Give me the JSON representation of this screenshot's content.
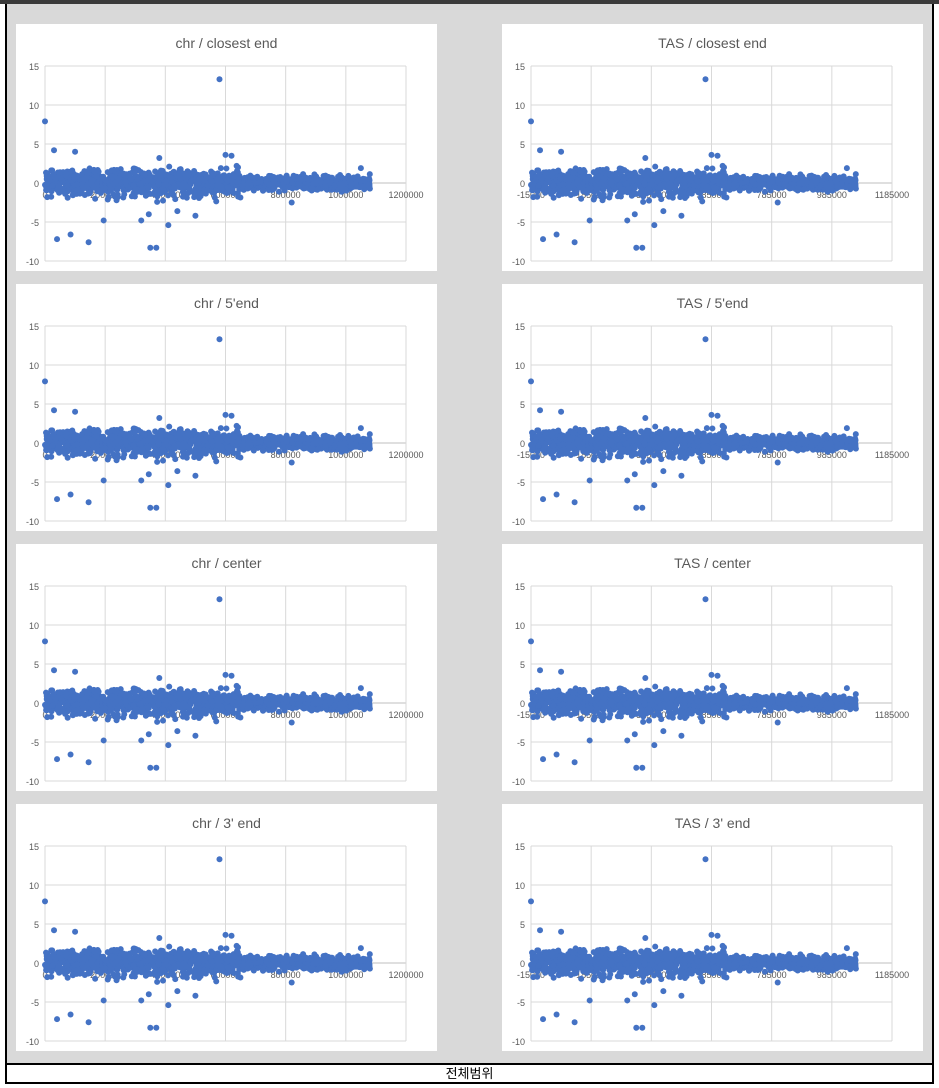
{
  "footer": {
    "label": "전체범위"
  },
  "colors": {
    "series": "#4472c4",
    "grid": "#d9d9d9",
    "axis": "#bfbfbf",
    "text": "#595959"
  },
  "chart_data": [
    {
      "id": "chr-closest",
      "type": "scatter",
      "title": "chr / closest end",
      "ylim": [
        -10,
        15
      ],
      "yticks": [
        -10,
        -5,
        0,
        5,
        10,
        15
      ],
      "xlim": [
        0,
        1200000
      ],
      "xticks": [
        0,
        200000,
        400000,
        600000,
        800000,
        1000000,
        1200000
      ],
      "xtick_labels": [
        "0",
        "200000",
        "400000",
        "600000",
        "800000",
        "1000000",
        "1200000"
      ]
    },
    {
      "id": "tas-closest",
      "type": "scatter",
      "title": "TAS / closest end",
      "ylim": [
        -10,
        15
      ],
      "yticks": [
        -10,
        -5,
        0,
        5,
        10,
        15
      ],
      "xlim": [
        -15000,
        1185000
      ],
      "xticks": [
        -15000,
        185000,
        385000,
        585000,
        785000,
        985000,
        1185000
      ],
      "xtick_labels": [
        "-15000",
        "185000",
        "385000",
        "585000",
        "785000",
        "985000",
        "1185000"
      ]
    },
    {
      "id": "chr-5end",
      "type": "scatter",
      "title": "chr / 5'end",
      "ylim": [
        -10,
        15
      ],
      "yticks": [
        -10,
        -5,
        0,
        5,
        10,
        15
      ],
      "xlim": [
        0,
        1200000
      ],
      "xticks": [
        0,
        200000,
        400000,
        600000,
        800000,
        1000000,
        1200000
      ],
      "xtick_labels": [
        "0",
        "200000",
        "400000",
        "600000",
        "800000",
        "1000000",
        "1200000"
      ]
    },
    {
      "id": "tas-5end",
      "type": "scatter",
      "title": "TAS / 5'end",
      "ylim": [
        -10,
        15
      ],
      "yticks": [
        -10,
        -5,
        0,
        5,
        10,
        15
      ],
      "xlim": [
        -15000,
        1185000
      ],
      "xticks": [
        -15000,
        185000,
        385000,
        585000,
        785000,
        985000,
        1185000
      ],
      "xtick_labels": [
        "-15000",
        "185000",
        "385000",
        "585000",
        "785000",
        "985000",
        "1185000"
      ]
    },
    {
      "id": "chr-center",
      "type": "scatter",
      "title": "chr / center",
      "ylim": [
        -10,
        15
      ],
      "yticks": [
        -10,
        -5,
        0,
        5,
        10,
        15
      ],
      "xlim": [
        0,
        1200000
      ],
      "xticks": [
        0,
        200000,
        400000,
        600000,
        800000,
        1000000,
        1200000
      ],
      "xtick_labels": [
        "0",
        "200000",
        "400000",
        "600000",
        "800000",
        "1000000",
        "1200000"
      ]
    },
    {
      "id": "tas-center",
      "type": "scatter",
      "title": "TAS / center",
      "ylim": [
        -10,
        15
      ],
      "yticks": [
        -10,
        -5,
        0,
        5,
        10,
        15
      ],
      "xlim": [
        -15000,
        1185000
      ],
      "xticks": [
        -15000,
        185000,
        385000,
        585000,
        785000,
        985000,
        1185000
      ],
      "xtick_labels": [
        "-15000",
        "185000",
        "385000",
        "585000",
        "785000",
        "985000",
        "1185000"
      ]
    },
    {
      "id": "chr-3end",
      "type": "scatter",
      "title": "chr / 3' end",
      "ylim": [
        -10,
        15
      ],
      "yticks": [
        -10,
        -5,
        0,
        5,
        10,
        15
      ],
      "xlim": [
        0,
        1200000
      ],
      "xticks": [
        0,
        200000,
        400000,
        600000,
        800000,
        1000000,
        1200000
      ],
      "xtick_labels": [
        "0",
        "200000",
        "400000",
        "600000",
        "800000",
        "1000000",
        "1200000"
      ]
    },
    {
      "id": "tas-3end",
      "type": "scatter",
      "title": "TAS / 3' end",
      "ylim": [
        -10,
        15
      ],
      "yticks": [
        -10,
        -5,
        0,
        5,
        10,
        15
      ],
      "xlim": [
        -15000,
        1185000
      ],
      "xticks": [
        -15000,
        185000,
        385000,
        585000,
        785000,
        985000,
        1185000
      ],
      "xtick_labels": [
        "-15000",
        "185000",
        "385000",
        "585000",
        "785000",
        "985000",
        "1185000"
      ]
    }
  ],
  "outliers": [
    [
      0,
      7.9
    ],
    [
      40000,
      -7.2
    ],
    [
      30000,
      4.2
    ],
    [
      85000,
      -6.6
    ],
    [
      100000,
      4.0
    ],
    [
      145000,
      -7.6
    ],
    [
      195000,
      -4.8
    ],
    [
      320000,
      -4.8
    ],
    [
      345000,
      -4.0
    ],
    [
      350000,
      -8.3
    ],
    [
      370000,
      -8.3
    ],
    [
      380000,
      3.2
    ],
    [
      410000,
      -5.4
    ],
    [
      440000,
      -3.6
    ],
    [
      500000,
      -4.2
    ],
    [
      580000,
      13.3
    ],
    [
      600000,
      3.6
    ],
    [
      620000,
      3.5
    ],
    [
      820000,
      -2.5
    ],
    [
      1050000,
      1.9
    ]
  ]
}
